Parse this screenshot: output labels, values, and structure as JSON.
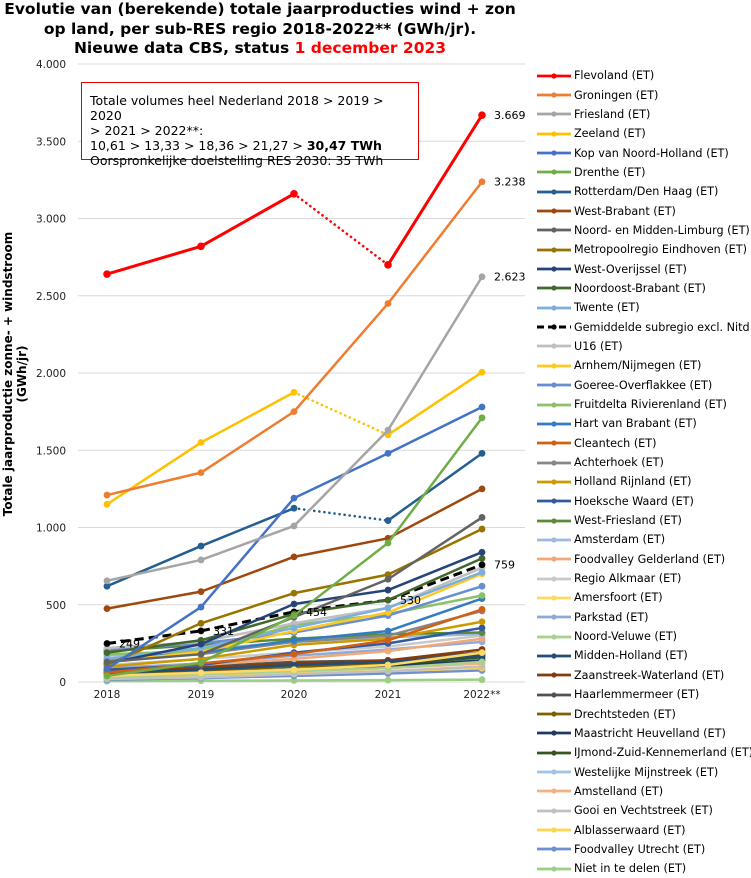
{
  "title": {
    "line1": "Evolutie van (berekende) totale jaarproducties wind + zon",
    "line2": "op land, per sub-RES regio 2018-2022** (GWh/jr).",
    "line3_prefix": "Nieuwe data CBS, status ",
    "line3_highlight": "1 december 2023"
  },
  "annotation": {
    "line1": "Totale volumes heel Nederland 2018 > 2019 > 2020",
    "line2": "> 2021 > 2022**:",
    "line3_prefix": "10,61 > 13,33 > 18,36 > 21,27 > ",
    "line3_bold": "30,47 TWh",
    "line4": "Oorspronkelijke doelstelling RES 2030: 35 TWh"
  },
  "chart_data": {
    "type": "line",
    "title": "Evolutie van (berekende) totale jaarproducties wind + zon op land, per sub-RES regio 2018-2022** (GWh/jr). Nieuwe data CBS, status 1 december 2023",
    "xlabel": "",
    "ylabel": "Totale jaarproductie zonne- + windstroom (GWh/jr)",
    "x": [
      "2018",
      "2019",
      "2020",
      "2021",
      "2022**"
    ],
    "ylim": [
      0,
      4000
    ],
    "yticks": [
      0,
      500,
      1000,
      1500,
      2000,
      2500,
      3000,
      3500,
      4000
    ],
    "ytick_labels": [
      "0",
      "500",
      "1.000",
      "1.500",
      "2.000",
      "2.500",
      "3.000",
      "3.500",
      "4.000"
    ],
    "grid": true,
    "legend_position": "right",
    "series": [
      {
        "name": "Flevoland (ET)",
        "color": "#ff0000",
        "values": [
          2640,
          2820,
          3160,
          2700,
          3669
        ],
        "dotted_segments": [
          2
        ],
        "labels": {
          "4": "3.669"
        },
        "bold": true
      },
      {
        "name": "Groningen (ET)",
        "color": "#ed7d31",
        "values": [
          1210,
          1355,
          1750,
          2450,
          3238
        ],
        "labels": {
          "4": "3.238"
        }
      },
      {
        "name": "Friesland (ET)",
        "color": "#a5a5a5",
        "values": [
          655,
          790,
          1010,
          1630,
          2623
        ],
        "labels": {
          "4": "2.623"
        }
      },
      {
        "name": "Zeeland (ET)",
        "color": "#ffc000",
        "values": [
          1150,
          1550,
          1875,
          1600,
          2005
        ],
        "dotted_segments": [
          2
        ]
      },
      {
        "name": "Kop van Noord-Holland (ET)",
        "color": "#4472c4",
        "values": [
          85,
          485,
          1190,
          1480,
          1780
        ]
      },
      {
        "name": "Drenthe (ET)",
        "color": "#70ad47",
        "values": [
          40,
          125,
          430,
          900,
          1710
        ]
      },
      {
        "name": "Rotterdam/Den Haag (ET)",
        "color": "#255e91",
        "values": [
          620,
          880,
          1125,
          1045,
          1480
        ],
        "dotted_segments": [
          2
        ]
      },
      {
        "name": "West-Brabant (ET)",
        "color": "#9e480e",
        "values": [
          475,
          585,
          810,
          930,
          1250
        ]
      },
      {
        "name": "Noord- en Midden-Limburg (ET)",
        "color": "#636363",
        "values": [
          130,
          180,
          420,
          665,
          1065
        ]
      },
      {
        "name": "Metropoolregio Eindhoven (ET)",
        "color": "#997300",
        "values": [
          110,
          380,
          575,
          695,
          990
        ]
      },
      {
        "name": "West-Overijssel (ET)",
        "color": "#264478",
        "values": [
          120,
          245,
          505,
          595,
          840
        ]
      },
      {
        "name": "Noordoost-Brabant (ET)",
        "color": "#43682b",
        "values": [
          190,
          270,
          440,
          530,
          800
        ]
      },
      {
        "name": "Twente (ET)",
        "color": "#7cafdd",
        "values": [
          150,
          220,
          350,
          480,
          710
        ]
      },
      {
        "name": "Gemiddelde subregio excl. Nitd",
        "color": "#000000",
        "values": [
          249,
          331,
          454,
          530,
          759
        ],
        "dashed": true,
        "labels": {
          "0": "249",
          "1": "331",
          "2": "454",
          "3": "530",
          "4": "759"
        }
      },
      {
        "name": "U16 (ET)",
        "color": "#bfbfbf",
        "values": [
          220,
          260,
          380,
          480,
          740
        ]
      },
      {
        "name": "Arnhem/Nijmegen (ET)",
        "color": "#ffc822",
        "values": [
          130,
          195,
          330,
          450,
          700
        ]
      },
      {
        "name": "Goeree-Overflakkee (ET)",
        "color": "#698ed0",
        "values": [
          210,
          250,
          320,
          430,
          620
        ]
      },
      {
        "name": "Fruitdelta Rivierenland (ET)",
        "color": "#8cc168",
        "values": [
          180,
          200,
          370,
          440,
          560
        ]
      },
      {
        "name": "Hart van Brabant (ET)",
        "color": "#327dc2",
        "values": [
          150,
          190,
          270,
          330,
          540
        ]
      },
      {
        "name": "Cleantech (ET)",
        "color": "#d26012",
        "values": [
          60,
          120,
          180,
          270,
          470
        ]
      },
      {
        "name": "Achterhoek (ET)",
        "color": "#878787",
        "values": [
          140,
          180,
          260,
          300,
          460
        ]
      },
      {
        "name": "Holland Rijnland (ET)",
        "color": "#cc9a00",
        "values": [
          100,
          150,
          240,
          280,
          390
        ]
      },
      {
        "name": "Hoeksche Waard (ET)",
        "color": "#335aa1",
        "values": [
          80,
          110,
          190,
          250,
          350
        ]
      },
      {
        "name": "West-Friesland (ET)",
        "color": "#5a8a39",
        "values": [
          200,
          240,
          280,
          310,
          320
        ]
      },
      {
        "name": "Amsterdam (ET)",
        "color": "#a0b7e0",
        "values": [
          170,
          210,
          260,
          290,
          310
        ]
      },
      {
        "name": "Foodvalley Gelderland (ET)",
        "color": "#f2a97a",
        "values": [
          80,
          110,
          150,
          200,
          280
        ]
      },
      {
        "name": "Regio Alkmaar (ET)",
        "color": "#c9c9c9",
        "values": [
          110,
          150,
          190,
          230,
          300
        ]
      },
      {
        "name": "Amersfoort (ET)",
        "color": "#ffd966",
        "values": [
          40,
          60,
          80,
          110,
          190
        ]
      },
      {
        "name": "Parkstad (ET)",
        "color": "#8eaadb",
        "values": [
          90,
          120,
          170,
          210,
          260
        ]
      },
      {
        "name": "Noord-Veluwe (ET)",
        "color": "#a9d08e",
        "values": [
          30,
          50,
          70,
          90,
          130
        ]
      },
      {
        "name": "Midden-Holland (ET)",
        "color": "#1f4e79",
        "values": [
          60,
          80,
          110,
          130,
          170
        ]
      },
      {
        "name": "Zaanstreek-Waterland (ET)",
        "color": "#843c0c",
        "values": [
          70,
          90,
          120,
          140,
          210
        ]
      },
      {
        "name": "Haarlemmermeer (ET)",
        "color": "#525252",
        "values": [
          80,
          100,
          130,
          140,
          190
        ]
      },
      {
        "name": "Drechtsteden (ET)",
        "color": "#7f6000",
        "values": [
          50,
          70,
          100,
          120,
          180
        ]
      },
      {
        "name": "Maastricht Heuvelland (ET)",
        "color": "#203864",
        "values": [
          40,
          60,
          80,
          100,
          140
        ]
      },
      {
        "name": "IJmond-Zuid-Kennemerland (ET)",
        "color": "#375623",
        "values": [
          60,
          80,
          100,
          110,
          160
        ]
      },
      {
        "name": "Westelijke Mijnstreek (ET)",
        "color": "#9dc3e6",
        "values": [
          50,
          70,
          90,
          110,
          150
        ]
      },
      {
        "name": "Amstelland (ET)",
        "color": "#f4b183",
        "values": [
          30,
          50,
          70,
          90,
          120
        ]
      },
      {
        "name": "Gooi en Vechtstreek (ET)",
        "color": "#c0c0c0",
        "values": [
          20,
          30,
          50,
          70,
          100
        ]
      },
      {
        "name": "Alblasserwaard (ET)",
        "color": "#ffd54f",
        "values": [
          35,
          45,
          60,
          70,
          90
        ]
      },
      {
        "name": "Foodvalley Utrecht (ET)",
        "color": "#6f8fcf",
        "values": [
          15,
          25,
          40,
          55,
          75
        ]
      },
      {
        "name": "Niet in te delen (ET)",
        "color": "#9bcf84",
        "values": [
          5,
          8,
          10,
          12,
          15
        ]
      }
    ]
  }
}
